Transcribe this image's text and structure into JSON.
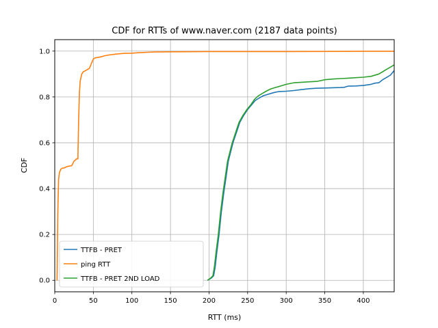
{
  "chart_data": {
    "type": "line",
    "title": "CDF for RTTs of www.naver.com (2187 data points)",
    "xlabel": "RTT (ms)",
    "ylabel": "CDF",
    "xlim": [
      0,
      440
    ],
    "ylim": [
      -0.05,
      1.05
    ],
    "xticks": [
      0,
      50,
      100,
      150,
      200,
      250,
      300,
      350,
      400
    ],
    "yticks": [
      0.0,
      0.2,
      0.4,
      0.6,
      0.8,
      1.0
    ],
    "grid": true,
    "legend_position": "lower left",
    "series": [
      {
        "name": "TTFB - PRET",
        "color": "#1f77b4",
        "x": [
          198,
          203,
          206,
          208,
          210,
          213,
          216,
          219,
          222,
          225,
          228,
          231,
          234,
          237,
          240,
          245,
          250,
          255,
          260,
          265,
          270,
          275,
          280,
          285,
          290,
          300,
          310,
          320,
          330,
          340,
          350,
          360,
          370,
          375,
          380,
          390,
          400,
          410,
          415,
          420,
          425,
          430,
          435,
          440
        ],
        "y": [
          0.0,
          0.01,
          0.02,
          0.06,
          0.12,
          0.2,
          0.3,
          0.38,
          0.45,
          0.52,
          0.56,
          0.6,
          0.63,
          0.66,
          0.69,
          0.72,
          0.745,
          0.765,
          0.785,
          0.795,
          0.805,
          0.81,
          0.815,
          0.82,
          0.823,
          0.825,
          0.828,
          0.832,
          0.836,
          0.838,
          0.839,
          0.84,
          0.841,
          0.842,
          0.847,
          0.848,
          0.85,
          0.855,
          0.86,
          0.862,
          0.875,
          0.885,
          0.895,
          0.915
        ]
      },
      {
        "name": "ping RTT",
        "color": "#ff7f0e",
        "x": [
          3,
          4,
          5,
          6,
          8,
          10,
          12,
          15,
          18,
          22,
          25,
          27,
          28,
          30,
          31,
          32,
          33,
          34,
          35,
          37,
          40,
          45,
          48,
          50,
          52,
          55,
          60,
          65,
          70,
          80,
          90,
          100,
          110,
          120,
          130,
          150,
          200,
          300,
          400,
          440
        ],
        "y": [
          0.0,
          0.3,
          0.44,
          0.47,
          0.485,
          0.49,
          0.49,
          0.495,
          0.498,
          0.5,
          0.52,
          0.525,
          0.53,
          0.53,
          0.7,
          0.82,
          0.87,
          0.885,
          0.9,
          0.91,
          0.915,
          0.925,
          0.95,
          0.965,
          0.97,
          0.972,
          0.975,
          0.98,
          0.983,
          0.987,
          0.99,
          0.991,
          0.993,
          0.995,
          0.996,
          0.997,
          0.998,
          0.998,
          0.999,
          0.999
        ]
      },
      {
        "name": "TTFB - PRET 2ND LOAD",
        "color": "#2ca02c",
        "x": [
          198,
          202,
          205,
          207,
          209,
          212,
          215,
          218,
          221,
          224,
          227,
          230,
          233,
          236,
          239,
          244,
          249,
          254,
          259,
          264,
          269,
          274,
          280,
          285,
          290,
          295,
          300,
          310,
          320,
          330,
          340,
          350,
          360,
          370,
          380,
          390,
          400,
          410,
          420,
          425,
          430,
          435,
          440
        ],
        "y": [
          0.0,
          0.01,
          0.02,
          0.06,
          0.12,
          0.2,
          0.3,
          0.38,
          0.45,
          0.52,
          0.56,
          0.6,
          0.63,
          0.66,
          0.69,
          0.72,
          0.745,
          0.765,
          0.79,
          0.805,
          0.815,
          0.825,
          0.835,
          0.84,
          0.845,
          0.85,
          0.855,
          0.862,
          0.864,
          0.866,
          0.868,
          0.875,
          0.878,
          0.88,
          0.882,
          0.884,
          0.886,
          0.89,
          0.9,
          0.91,
          0.92,
          0.93,
          0.94
        ]
      }
    ]
  }
}
